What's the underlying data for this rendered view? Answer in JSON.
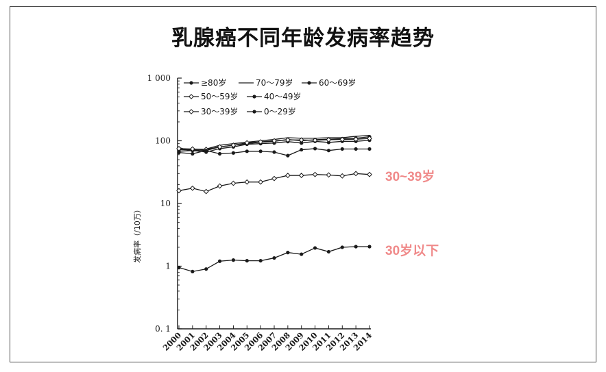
{
  "title": "乳腺癌不同年龄发病率趋势",
  "annotations": [
    {
      "id": "ann-30-39",
      "text": "30~39岁"
    },
    {
      "id": "ann-under-30",
      "text": "30岁以下"
    }
  ],
  "colors": {
    "annotation": "#f08a8a",
    "series": "#1a1a1a",
    "frame": "#4a4a4a"
  },
  "chart_data": {
    "type": "line",
    "title": "",
    "ylabel": "发病率（/10万）",
    "xlabel": "",
    "yscale": "log",
    "ylim": [
      0.1,
      1000
    ],
    "yticks": [
      {
        "value": 1000,
        "label": "1 000"
      },
      {
        "value": 100,
        "label": "100"
      },
      {
        "value": 10,
        "label": "10"
      },
      {
        "value": 1,
        "label": "1"
      },
      {
        "value": 0.1,
        "label": "0. 1"
      }
    ],
    "x": [
      "2000",
      "2001",
      "2002",
      "2003",
      "2004",
      "2005",
      "2006",
      "2007",
      "2008",
      "2009",
      "2010",
      "2011",
      "2012",
      "2013",
      "2014"
    ],
    "legend_position": "top-left",
    "series": [
      {
        "name": "≥80岁",
        "marker": "filled",
        "values": [
          68,
          70,
          66,
          75,
          80,
          88,
          90,
          92,
          97,
          92,
          98,
          94,
          98,
          98,
          102
        ]
      },
      {
        "name": "70～79岁",
        "marker": "none",
        "values": [
          78,
          68,
          74,
          85,
          90,
          95,
          100,
          105,
          112,
          110,
          110,
          112,
          112,
          118,
          122
        ]
      },
      {
        "name": "60～69岁",
        "marker": "filled",
        "values": [
          72,
          72,
          70,
          80,
          85,
          90,
          95,
          98,
          105,
          100,
          104,
          106,
          108,
          110,
          116
        ]
      },
      {
        "name": "50～59岁",
        "marker": "open",
        "values": [
          75,
          74,
          73,
          80,
          85,
          93,
          96,
          100,
          103,
          103,
          102,
          104,
          105,
          106,
          109
        ]
      },
      {
        "name": "40～49岁",
        "marker": "filled",
        "values": [
          65,
          62,
          70,
          62,
          64,
          68,
          68,
          66,
          58,
          72,
          75,
          70,
          74,
          74,
          74
        ]
      },
      {
        "name": "30～39岁",
        "marker": "open",
        "values": [
          16,
          17.5,
          15.5,
          19,
          21,
          22,
          22,
          25,
          28,
          28,
          29,
          28.5,
          27.5,
          30,
          29
        ]
      },
      {
        "name": "0～29岁",
        "marker": "filled",
        "values": [
          0.95,
          0.82,
          0.9,
          1.2,
          1.25,
          1.22,
          1.22,
          1.35,
          1.65,
          1.55,
          1.95,
          1.7,
          2.0,
          2.05,
          2.05
        ]
      }
    ]
  }
}
